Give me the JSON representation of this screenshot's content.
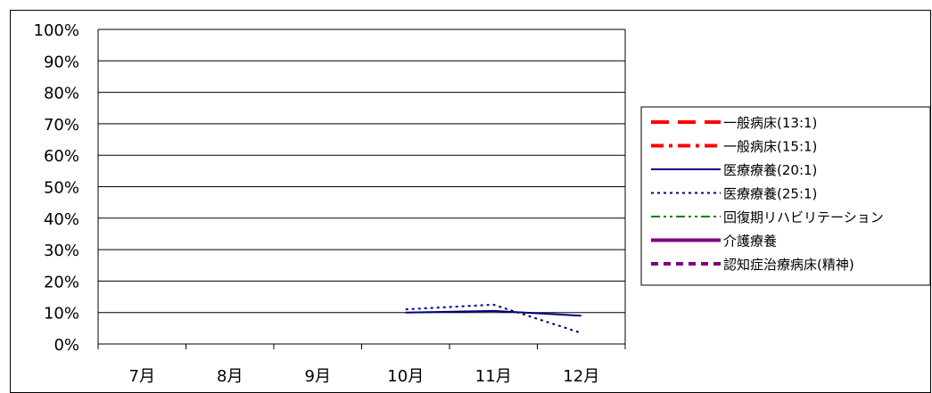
{
  "chart_data": {
    "type": "line",
    "title": "",
    "xlabel": "",
    "ylabel": "",
    "categories": [
      "7月",
      "8月",
      "9月",
      "10月",
      "11月",
      "12月"
    ],
    "y_ticks": [
      "0%",
      "10%",
      "20%",
      "30%",
      "40%",
      "50%",
      "60%",
      "70%",
      "80%",
      "90%",
      "100%"
    ],
    "ylim": [
      0,
      100
    ],
    "grid": true,
    "legend_position": "right",
    "series": [
      {
        "name": "一般病床(13:1)",
        "color": "#ff0000",
        "dash": "long-dash",
        "values": [
          null,
          null,
          null,
          null,
          null,
          null
        ]
      },
      {
        "name": "一般病床(15:1)",
        "color": "#ff0000",
        "dash": "dash-dot",
        "values": [
          null,
          null,
          null,
          null,
          null,
          null
        ]
      },
      {
        "name": "医療療養(20:1)",
        "color": "#000080",
        "dash": "solid",
        "values": [
          null,
          null,
          null,
          10,
          10.5,
          9
        ]
      },
      {
        "name": "医療療養(25:1)",
        "color": "#000080",
        "dash": "dotted",
        "values": [
          null,
          null,
          null,
          11,
          12.5,
          3.5
        ]
      },
      {
        "name": "回復期リハビリテーション",
        "color": "#008000",
        "dash": "dash-dot-dot",
        "values": [
          null,
          null,
          null,
          null,
          null,
          null
        ]
      },
      {
        "name": "介護療養",
        "color": "#800080",
        "dash": "solid",
        "values": [
          null,
          null,
          null,
          null,
          null,
          null
        ]
      },
      {
        "name": "認知症治療病床(精神)",
        "color": "#800080",
        "dash": "dash",
        "values": [
          null,
          null,
          null,
          null,
          null,
          null
        ]
      }
    ]
  }
}
